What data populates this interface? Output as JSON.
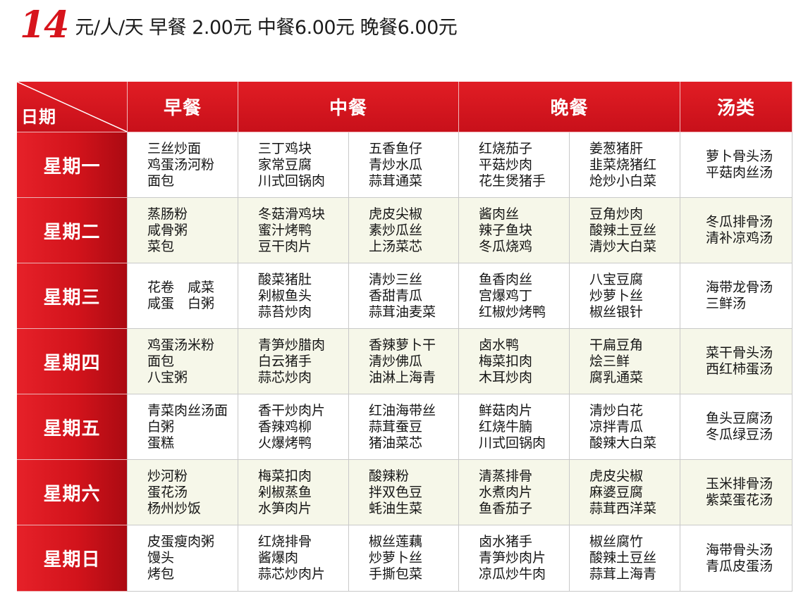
{
  "header": {
    "number": "14",
    "price_text": "元/人/天 早餐 2.00元 中餐6.00元 晚餐6.00元"
  },
  "table": {
    "corner_label": "日期",
    "headers": {
      "breakfast": "早餐",
      "lunch": "中餐",
      "dinner": "晚餐",
      "soup": "汤类"
    },
    "days": [
      {
        "day": "星期一",
        "breakfast": [
          "三丝炒面",
          "鸡蛋汤河粉",
          "面包"
        ],
        "lunch_a": [
          "三丁鸡块",
          "家常豆腐",
          "川式回锅肉"
        ],
        "lunch_b": [
          "五香鱼仔",
          "青炒水瓜",
          "蒜茸通菜"
        ],
        "dinner_a": [
          "红烧茄子",
          "平菇炒肉",
          "花生煲猪手"
        ],
        "dinner_b": [
          "姜葱猪肝",
          "韭菜烧猪红",
          "炝炒小白菜"
        ],
        "soup": [
          "萝卜骨头汤",
          "平菇肉丝汤"
        ]
      },
      {
        "day": "星期二",
        "breakfast": [
          "蒸肠粉",
          "咸骨粥",
          "菜包"
        ],
        "lunch_a": [
          "冬菇滑鸡块",
          "蜜汁烤鸭",
          "豆干肉片"
        ],
        "lunch_b": [
          "虎皮尖椒",
          "素炒瓜丝",
          "上汤菜芯"
        ],
        "dinner_a": [
          "酱肉丝",
          "辣子鱼块",
          "冬瓜烧鸡"
        ],
        "dinner_b": [
          "豆角炒肉",
          "酸辣土豆丝",
          "清炒大白菜"
        ],
        "soup": [
          "冬瓜排骨汤",
          "清补凉鸡汤"
        ]
      },
      {
        "day": "星期三",
        "breakfast": [
          "花卷　咸菜",
          "咸蛋　白粥"
        ],
        "lunch_a": [
          "酸菜猪肚",
          "剁椒鱼头",
          "蒜苔炒肉"
        ],
        "lunch_b": [
          "清炒三丝",
          "香甜青瓜",
          "蒜茸油麦菜"
        ],
        "dinner_a": [
          "鱼香肉丝",
          "宫爆鸡丁",
          "红椒炒烤鸭"
        ],
        "dinner_b": [
          "八宝豆腐",
          "炒萝卜丝",
          "椒丝银针"
        ],
        "soup": [
          "海带龙骨汤",
          "三鲜汤"
        ]
      },
      {
        "day": "星期四",
        "breakfast": [
          "鸡蛋汤米粉",
          "面包",
          "八宝粥"
        ],
        "lunch_a": [
          "青笋炒腊肉",
          "白云猪手",
          "蒜芯炒肉"
        ],
        "lunch_b": [
          "香辣萝卜干",
          "清炒佛瓜",
          "油淋上海青"
        ],
        "dinner_a": [
          "卤水鸭",
          "梅菜扣肉",
          "木耳炒肉"
        ],
        "dinner_b": [
          "干扁豆角",
          "烩三鲜",
          "腐乳通菜"
        ],
        "soup": [
          "菜干骨头汤",
          "西红柿蛋汤"
        ]
      },
      {
        "day": "星期五",
        "breakfast": [
          "青菜肉丝汤面",
          "白粥",
          "蛋糕"
        ],
        "lunch_a": [
          "香干炒肉片",
          "香辣鸡柳",
          "火爆烤鸭"
        ],
        "lunch_b": [
          "红油海带丝",
          "蒜茸蚕豆",
          "猪油菜芯"
        ],
        "dinner_a": [
          "鲜菇肉片",
          "红烧牛腩",
          "川式回锅肉"
        ],
        "dinner_b": [
          "清炒白花",
          "凉拌青瓜",
          "酸辣大白菜"
        ],
        "soup": [
          "鱼头豆腐汤",
          "冬瓜绿豆汤"
        ]
      },
      {
        "day": "星期六",
        "breakfast": [
          "炒河粉",
          "蛋花汤",
          "杨州炒饭"
        ],
        "lunch_a": [
          "梅菜扣肉",
          "剁椒蒸鱼",
          "水笋肉片"
        ],
        "lunch_b": [
          "酸辣粉",
          "拌双色豆",
          "蚝油生菜"
        ],
        "dinner_a": [
          "清蒸排骨",
          "水煮肉片",
          "鱼香茄子"
        ],
        "dinner_b": [
          "虎皮尖椒",
          "麻婆豆腐",
          "蒜茸西洋菜"
        ],
        "soup": [
          "玉米排骨汤",
          "紫菜蛋花汤"
        ]
      },
      {
        "day": "星期日",
        "breakfast": [
          "皮蛋瘦肉粥",
          "馒头",
          "烤包"
        ],
        "lunch_a": [
          "红烧排骨",
          "酱爆肉",
          "蒜芯炒肉片"
        ],
        "lunch_b": [
          "椒丝莲藕",
          "炒萝卜丝",
          "手撕包菜"
        ],
        "dinner_a": [
          "卤水猪手",
          "青笋炒肉片",
          "凉瓜炒牛肉"
        ],
        "dinner_b": [
          "椒丝腐竹",
          "酸辣土豆丝",
          "蒜茸上海青"
        ],
        "soup": [
          "海带骨头汤",
          "青瓜皮蛋汤"
        ]
      }
    ]
  }
}
